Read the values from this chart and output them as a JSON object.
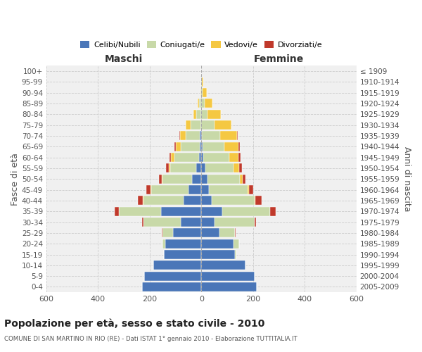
{
  "age_groups": [
    "0-4",
    "5-9",
    "10-14",
    "15-19",
    "20-24",
    "25-29",
    "30-34",
    "35-39",
    "40-44",
    "45-49",
    "50-54",
    "55-59",
    "60-64",
    "65-69",
    "70-74",
    "75-79",
    "80-84",
    "85-89",
    "90-94",
    "95-99",
    "100+"
  ],
  "birth_years": [
    "2005-2009",
    "2000-2004",
    "1995-1999",
    "1990-1994",
    "1985-1989",
    "1980-1984",
    "1975-1979",
    "1970-1974",
    "1965-1969",
    "1960-1964",
    "1955-1959",
    "1950-1954",
    "1945-1949",
    "1940-1944",
    "1935-1939",
    "1930-1934",
    "1925-1929",
    "1920-1924",
    "1915-1919",
    "1910-1914",
    "≤ 1909"
  ],
  "male": {
    "celibi": [
      230,
      220,
      185,
      145,
      140,
      110,
      80,
      155,
      70,
      50,
      35,
      20,
      10,
      5,
      5,
      2,
      0,
      0,
      0,
      0,
      0
    ],
    "coniugati": [
      0,
      0,
      0,
      0,
      10,
      40,
      145,
      165,
      155,
      145,
      115,
      100,
      95,
      75,
      55,
      40,
      20,
      8,
      2,
      0,
      0
    ],
    "vedovi": [
      0,
      0,
      0,
      0,
      0,
      0,
      0,
      0,
      1,
      2,
      3,
      5,
      12,
      20,
      22,
      18,
      12,
      6,
      2,
      0,
      0
    ],
    "divorziati": [
      0,
      0,
      0,
      0,
      0,
      2,
      5,
      15,
      20,
      15,
      10,
      12,
      5,
      3,
      2,
      0,
      0,
      0,
      0,
      0,
      0
    ]
  },
  "female": {
    "nubili": [
      215,
      205,
      170,
      130,
      125,
      70,
      50,
      80,
      40,
      30,
      25,
      15,
      8,
      4,
      2,
      0,
      0,
      0,
      0,
      0,
      0
    ],
    "coniugate": [
      0,
      0,
      0,
      5,
      20,
      60,
      155,
      185,
      165,
      150,
      125,
      110,
      100,
      85,
      70,
      50,
      25,
      12,
      5,
      2,
      0
    ],
    "vedove": [
      0,
      0,
      0,
      0,
      0,
      0,
      1,
      2,
      3,
      5,
      10,
      20,
      35,
      55,
      65,
      65,
      50,
      30,
      15,
      5,
      0
    ],
    "divorziate": [
      0,
      0,
      0,
      0,
      2,
      2,
      5,
      20,
      25,
      15,
      10,
      12,
      8,
      5,
      3,
      2,
      0,
      0,
      0,
      0,
      0
    ]
  },
  "colors": {
    "celibi_nubili": "#4A76B8",
    "coniugati": "#C8D9A8",
    "vedovi": "#F5C842",
    "divorziati": "#C0392B"
  },
  "title": "Popolazione per età, sesso e stato civile - 2010",
  "subtitle": "COMUNE DI SAN MARTINO IN RIO (RE) - Dati ISTAT 1° gennaio 2010 - Elaborazione TUTTITALIA.IT",
  "xlabel_left": "Maschi",
  "xlabel_right": "Femmine",
  "ylabel_left": "Fasce di età",
  "ylabel_right": "Anni di nascita",
  "xlim": 600,
  "legend_labels": [
    "Celibi/Nubili",
    "Coniugati/e",
    "Vedovi/e",
    "Divorziati/e"
  ],
  "background_color": "#ffffff",
  "grid_color": "#cccccc"
}
